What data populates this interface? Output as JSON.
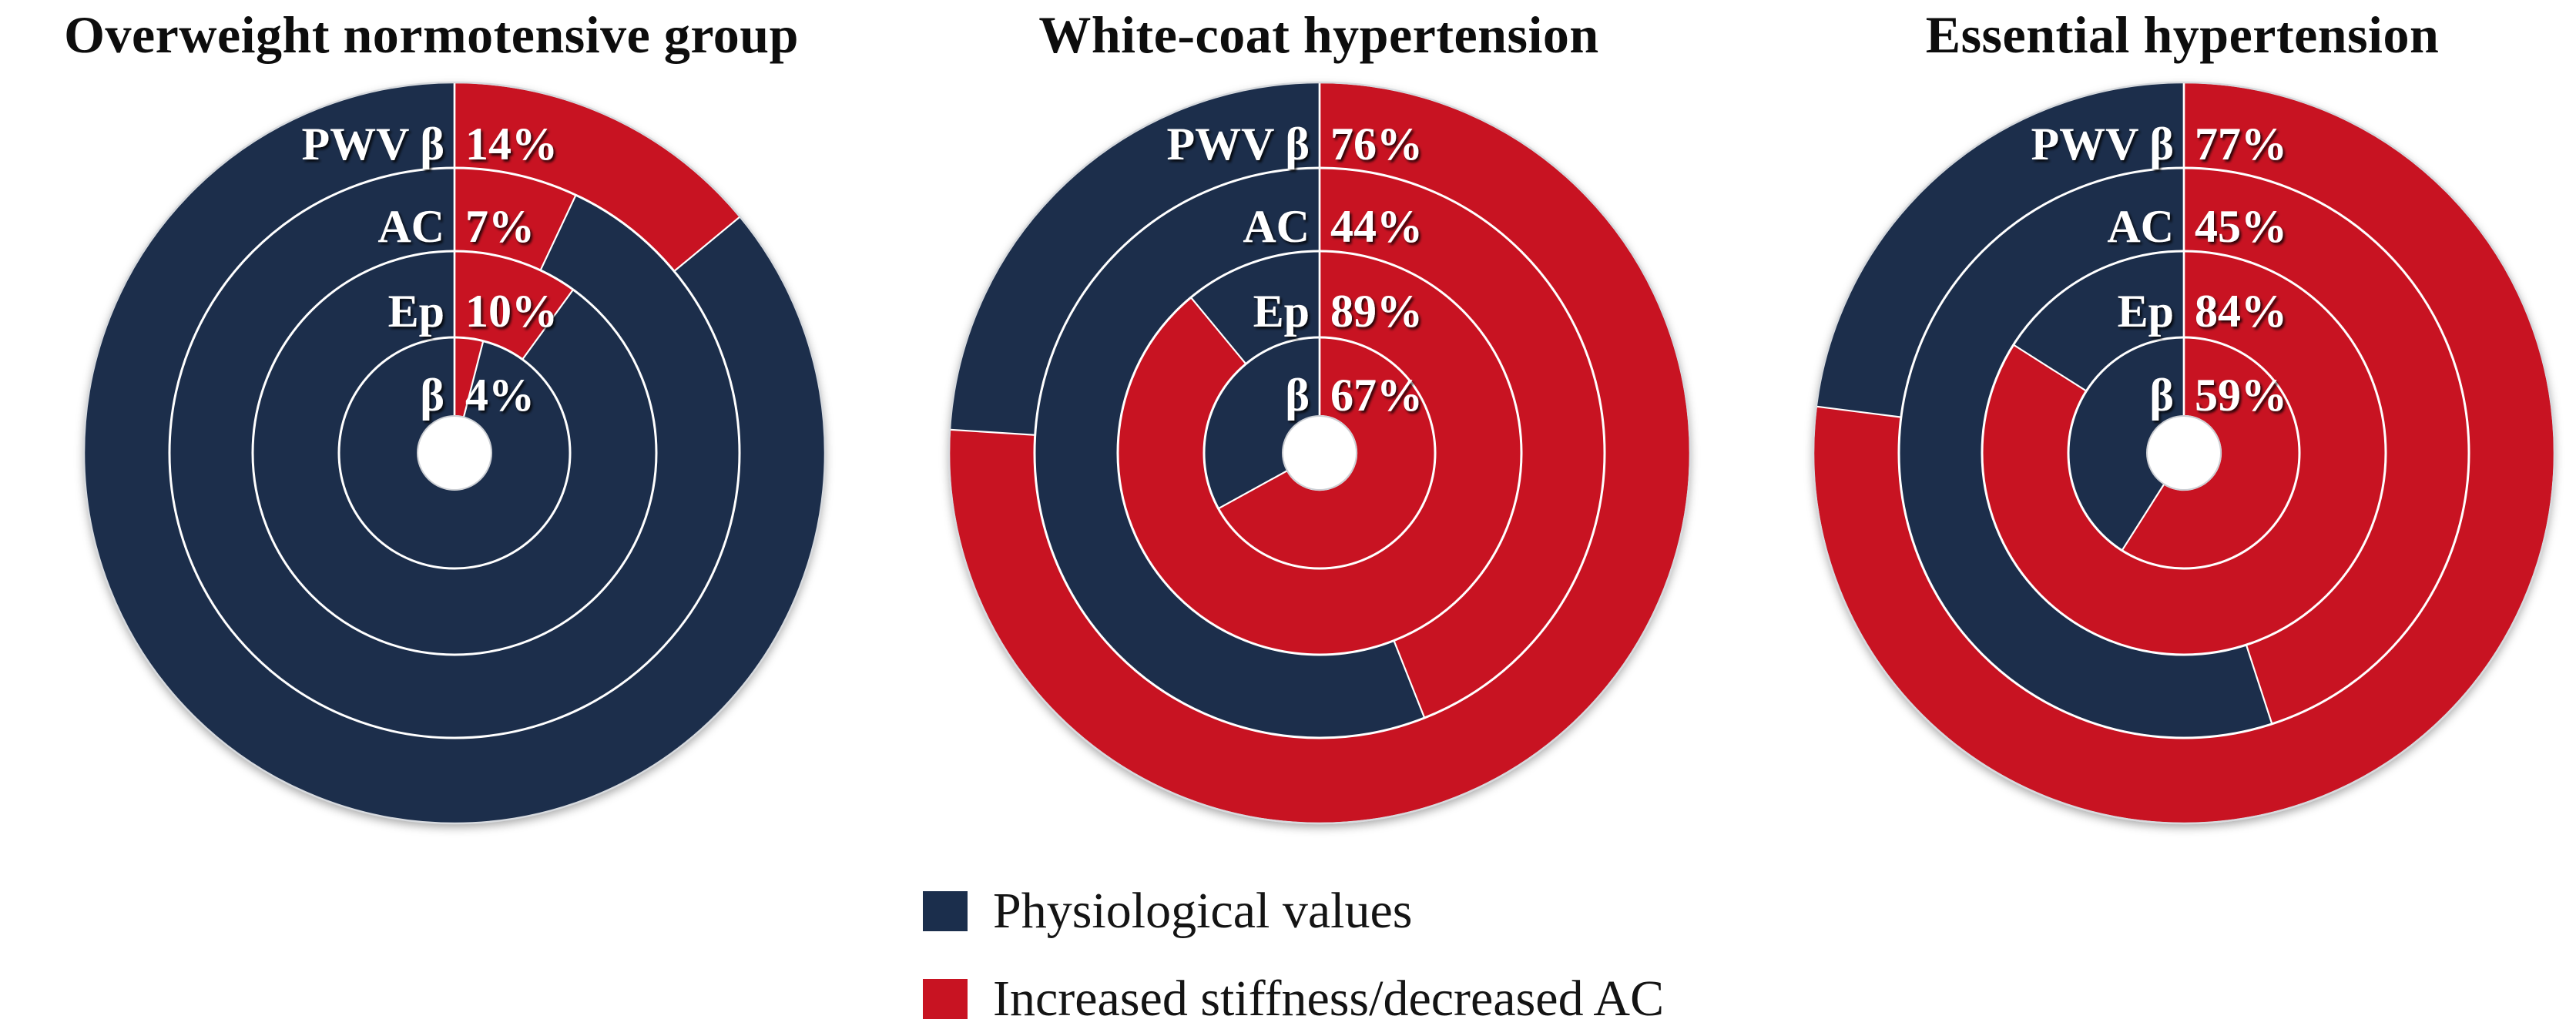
{
  "figure": {
    "background": "#ffffff"
  },
  "colors": {
    "physiological": "#1b2e4c",
    "increased": "#c81322",
    "separator": "#ffffff",
    "outer_rim": "#d7dade",
    "hole_fill": "#ffffff",
    "title_text": "#0d0d0d",
    "label_text": "#ffffff"
  },
  "charts": [
    {
      "title": "Overweight normotensive group",
      "rings": [
        {
          "label": "PWV β",
          "value_label": "14%",
          "percent": 14
        },
        {
          "label": "AC",
          "value_label": "7%",
          "percent": 7
        },
        {
          "label": "Ep",
          "value_label": "10%",
          "percent": 10
        },
        {
          "label": "β",
          "value_label": "4%",
          "percent": 4
        }
      ]
    },
    {
      "title": "White-coat hypertension",
      "rings": [
        {
          "label": "PWV β",
          "value_label": "76%",
          "percent": 76
        },
        {
          "label": "AC",
          "value_label": "44%",
          "percent": 44
        },
        {
          "label": "Ep",
          "value_label": "89%",
          "percent": 89
        },
        {
          "label": "β",
          "value_label": "67%",
          "percent": 67
        }
      ]
    },
    {
      "title": "Essential hypertension",
      "rings": [
        {
          "label": "PWV β",
          "value_label": "77%",
          "percent": 77
        },
        {
          "label": "AC",
          "value_label": "45%",
          "percent": 45
        },
        {
          "label": "Ep",
          "value_label": "84%",
          "percent": 84
        },
        {
          "label": "β",
          "value_label": "59%",
          "percent": 59
        }
      ]
    }
  ],
  "legend": {
    "items": [
      {
        "label": "Physiological values",
        "color": "#1b2e4c"
      },
      {
        "label": "Increased stiffness/decreased AC",
        "color": "#c81322"
      }
    ]
  },
  "chart_data": [
    {
      "type": "donut",
      "title": "Overweight normotensive group",
      "rings_outer_to_inner": [
        "PWV β",
        "AC",
        "Ep",
        "β"
      ],
      "units": "%",
      "start_angle_deg": 0,
      "direction": "clockwise",
      "series": [
        {
          "name": "Increased stiffness/decreased AC",
          "color": "#c81322",
          "values": [
            14,
            7,
            10,
            4
          ]
        },
        {
          "name": "Physiological values",
          "color": "#1b2e4c",
          "values": [
            86,
            93,
            90,
            96
          ]
        }
      ]
    },
    {
      "type": "donut",
      "title": "White-coat hypertension",
      "rings_outer_to_inner": [
        "PWV β",
        "AC",
        "Ep",
        "β"
      ],
      "units": "%",
      "start_angle_deg": 0,
      "direction": "clockwise",
      "series": [
        {
          "name": "Increased stiffness/decreased AC",
          "color": "#c81322",
          "values": [
            76,
            44,
            89,
            67
          ]
        },
        {
          "name": "Physiological values",
          "color": "#1b2e4c",
          "values": [
            24,
            56,
            11,
            33
          ]
        }
      ]
    },
    {
      "type": "donut",
      "title": "Essential hypertension",
      "rings_outer_to_inner": [
        "PWV β",
        "AC",
        "Ep",
        "β"
      ],
      "units": "%",
      "start_angle_deg": 0,
      "direction": "clockwise",
      "series": [
        {
          "name": "Increased stiffness/decreased AC",
          "color": "#c81322",
          "values": [
            77,
            45,
            84,
            59
          ]
        },
        {
          "name": "Physiological values",
          "color": "#1b2e4c",
          "values": [
            23,
            55,
            16,
            41
          ]
        }
      ]
    }
  ]
}
